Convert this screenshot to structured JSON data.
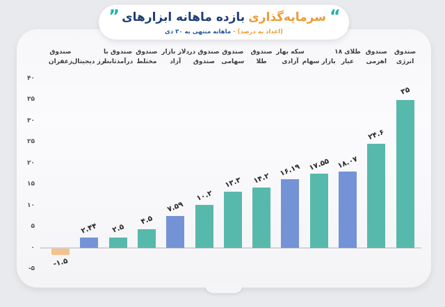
{
  "header": {
    "quote_left": "”",
    "quote_right": "“",
    "title_main": "بازده ماهانه ابزارهای",
    "title_accent": "سرمایه‌گذاری",
    "subtitle_main": "ماهانه منتهی به ۳۰ دی",
    "subtitle_dash": "-",
    "subtitle_accent": "(اعداد به درصد)",
    "colors": {
      "title_navy": "#1d3d73",
      "title_orange": "#f0992d",
      "quote_teal": "#19b3a6",
      "subtitle_blue": "#27549e",
      "subtitle_orange": "#f0992d"
    }
  },
  "chart_data": {
    "type": "bar",
    "title": "بازده ماهانه ابزارهای سرمایه‌گذاری",
    "subtitle": "ماهانه منتهی به ۳۰ دی - (اعداد به درصد)",
    "unit_note": "اعداد به درصد",
    "categories": [
      "صندوق زعفران",
      "ارز دیجیتال",
      "صندوق با درآمدثابت",
      "صندوق مختلط",
      "دلار بازار آزاد",
      "صندوق در صندوق",
      "صندوق سهامی",
      "صندوق طلا",
      "سکه بهار آزادی",
      "بازار سهام",
      "طلای ۱۸ عیار",
      "صندوق اهرمی",
      "صندوق انرژی"
    ],
    "category_display": [
      "صندوق\nزعفران",
      "ارز دیجیتال",
      "صندوق با\nدرآمدثابت",
      "صندوق\nمختلط",
      "دلار بازار\nآزاد",
      "صندوق در\nصندوق",
      "صندوق\nسهامی",
      "صندوق\nطلا",
      "سکه بهار\nآزادی",
      "بازار سهام",
      "طلای ۱۸\nعیار",
      "صندوق\nاهرمی",
      "صندوق\nانرژی"
    ],
    "values": [
      -1.5,
      2.44,
      2.5,
      4.5,
      7.59,
      10.2,
      13.3,
      14.2,
      16.19,
      17.55,
      18.07,
      24.6,
      35
    ],
    "value_labels": [
      "-۱.۵",
      "۲.۴۴",
      "۲.۵",
      "۴.۵",
      "۷.۵۹",
      "۱۰.۲",
      "۱۳.۳",
      "۱۴.۲",
      "۱۶.۱۹",
      "۱۷.۵۵",
      "۱۸.۰۷",
      "۲۴.۶",
      "۳۵"
    ],
    "bar_colors": [
      "#f6c18c",
      "#7493d6",
      "#57b9ab",
      "#57b9ab",
      "#7493d6",
      "#57b9ab",
      "#57b9ab",
      "#57b9ab",
      "#7493d6",
      "#57b9ab",
      "#7493d6",
      "#57b9ab",
      "#57b9ab"
    ],
    "y_ticks": [
      {
        "value": 40,
        "label": "۴۰"
      },
      {
        "value": 35,
        "label": "۳۵"
      },
      {
        "value": 30,
        "label": "۳۰"
      },
      {
        "value": 25,
        "label": "۲۵"
      },
      {
        "value": 20,
        "label": "۲۰"
      },
      {
        "value": 15,
        "label": "۱۵"
      },
      {
        "value": 10,
        "label": "۱۰"
      },
      {
        "value": 5,
        "label": "۵"
      },
      {
        "value": 0,
        "label": "۰"
      },
      {
        "value": -5,
        "label": "-۵"
      }
    ],
    "ylim": [
      -5,
      40
    ],
    "grid": false,
    "legend": false
  }
}
